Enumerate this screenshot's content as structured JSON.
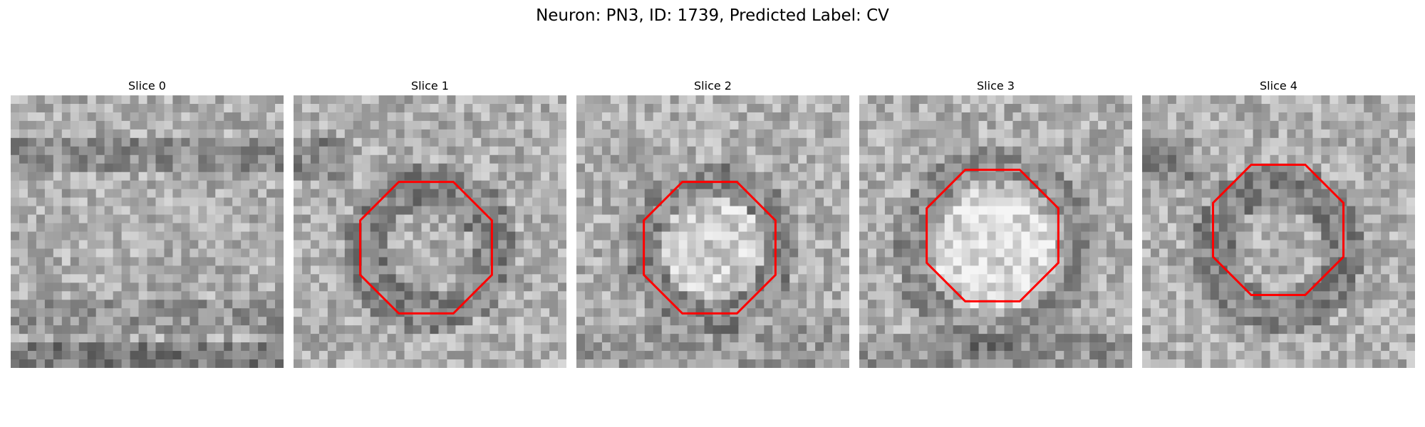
{
  "figure": {
    "title": "Neuron: PN3, ID: 1739, Predicted Label: CV"
  },
  "panels": [
    {
      "title": "Slice 0",
      "has_marker": false,
      "seed": 11,
      "profile": "band"
    },
    {
      "title": "Slice 1",
      "has_marker": true,
      "seed": 23,
      "profile": "dark-ring"
    },
    {
      "title": "Slice 2",
      "has_marker": true,
      "seed": 37,
      "profile": "light-center"
    },
    {
      "title": "Slice 3",
      "has_marker": true,
      "seed": 53,
      "profile": "bright-center"
    },
    {
      "title": "Slice 4",
      "has_marker": true,
      "seed": 71,
      "profile": "dark-ring"
    }
  ],
  "colors": {
    "marker": "#ff0000",
    "image_scale": "grayscale"
  }
}
